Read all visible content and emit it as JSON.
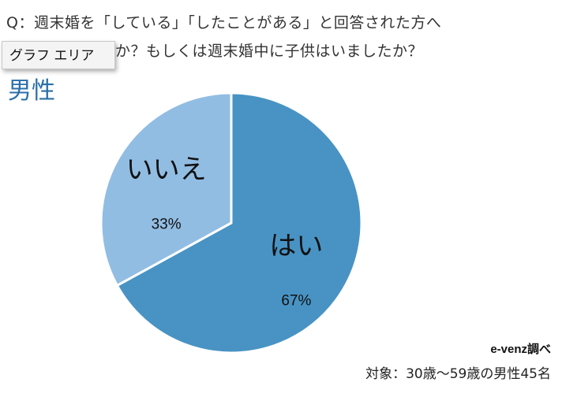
{
  "question": {
    "line1": "Q：週末婚を「している」「したことがある」と回答された方へ",
    "line2": "か？もしくは週末婚中に子供はいましたか？"
  },
  "tooltip": {
    "label": "グラフ エリア"
  },
  "gender": {
    "label": "男性"
  },
  "chart_data": {
    "type": "pie",
    "title": "男性",
    "slices": [
      {
        "label": "はい",
        "value": 67,
        "display": "67%",
        "color": "#4893c4"
      },
      {
        "label": "いいえ",
        "value": 33,
        "display": "33%",
        "color": "#92bde3"
      }
    ],
    "start_angle_deg": 0,
    "direction": "clockwise",
    "legend": "none"
  },
  "footer": {
    "credit": "e-venz調べ",
    "note": "対象：30歳～59歳の男性45名"
  }
}
